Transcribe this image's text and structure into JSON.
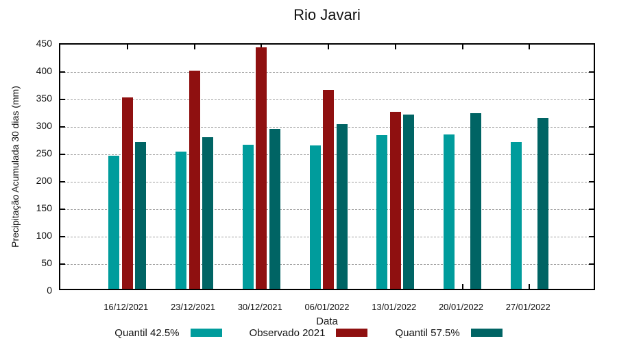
{
  "title": "Rio Javari",
  "chart_data": {
    "type": "bar",
    "title": "Rio Javari",
    "xlabel": "Data",
    "ylabel": "Precipitação Acumulada 30 dias (mm)",
    "categories": [
      "16/12/2021",
      "23/12/2021",
      "30/12/2021",
      "06/01/2022",
      "13/01/2022",
      "20/01/2022",
      "27/01/2022"
    ],
    "series": [
      {
        "name": "Quantil 42.5%",
        "color": "#009C9C",
        "values": [
          243,
          250,
          262,
          261,
          280,
          281,
          268
        ]
      },
      {
        "name": "Observado 2021",
        "color": "#8F1010",
        "values": [
          349,
          398,
          440,
          362,
          323,
          null,
          null
        ]
      },
      {
        "name": "Quantil 57.5%",
        "color": "#006464",
        "values": [
          267,
          276,
          291,
          300,
          317,
          320,
          311
        ]
      }
    ],
    "ylim": [
      0,
      450
    ],
    "ytick_step": 50,
    "grid": "horizontal-dashed",
    "grid_color": "#9e9e9e",
    "axis_color": "#000000",
    "legend_position": "bottom"
  }
}
